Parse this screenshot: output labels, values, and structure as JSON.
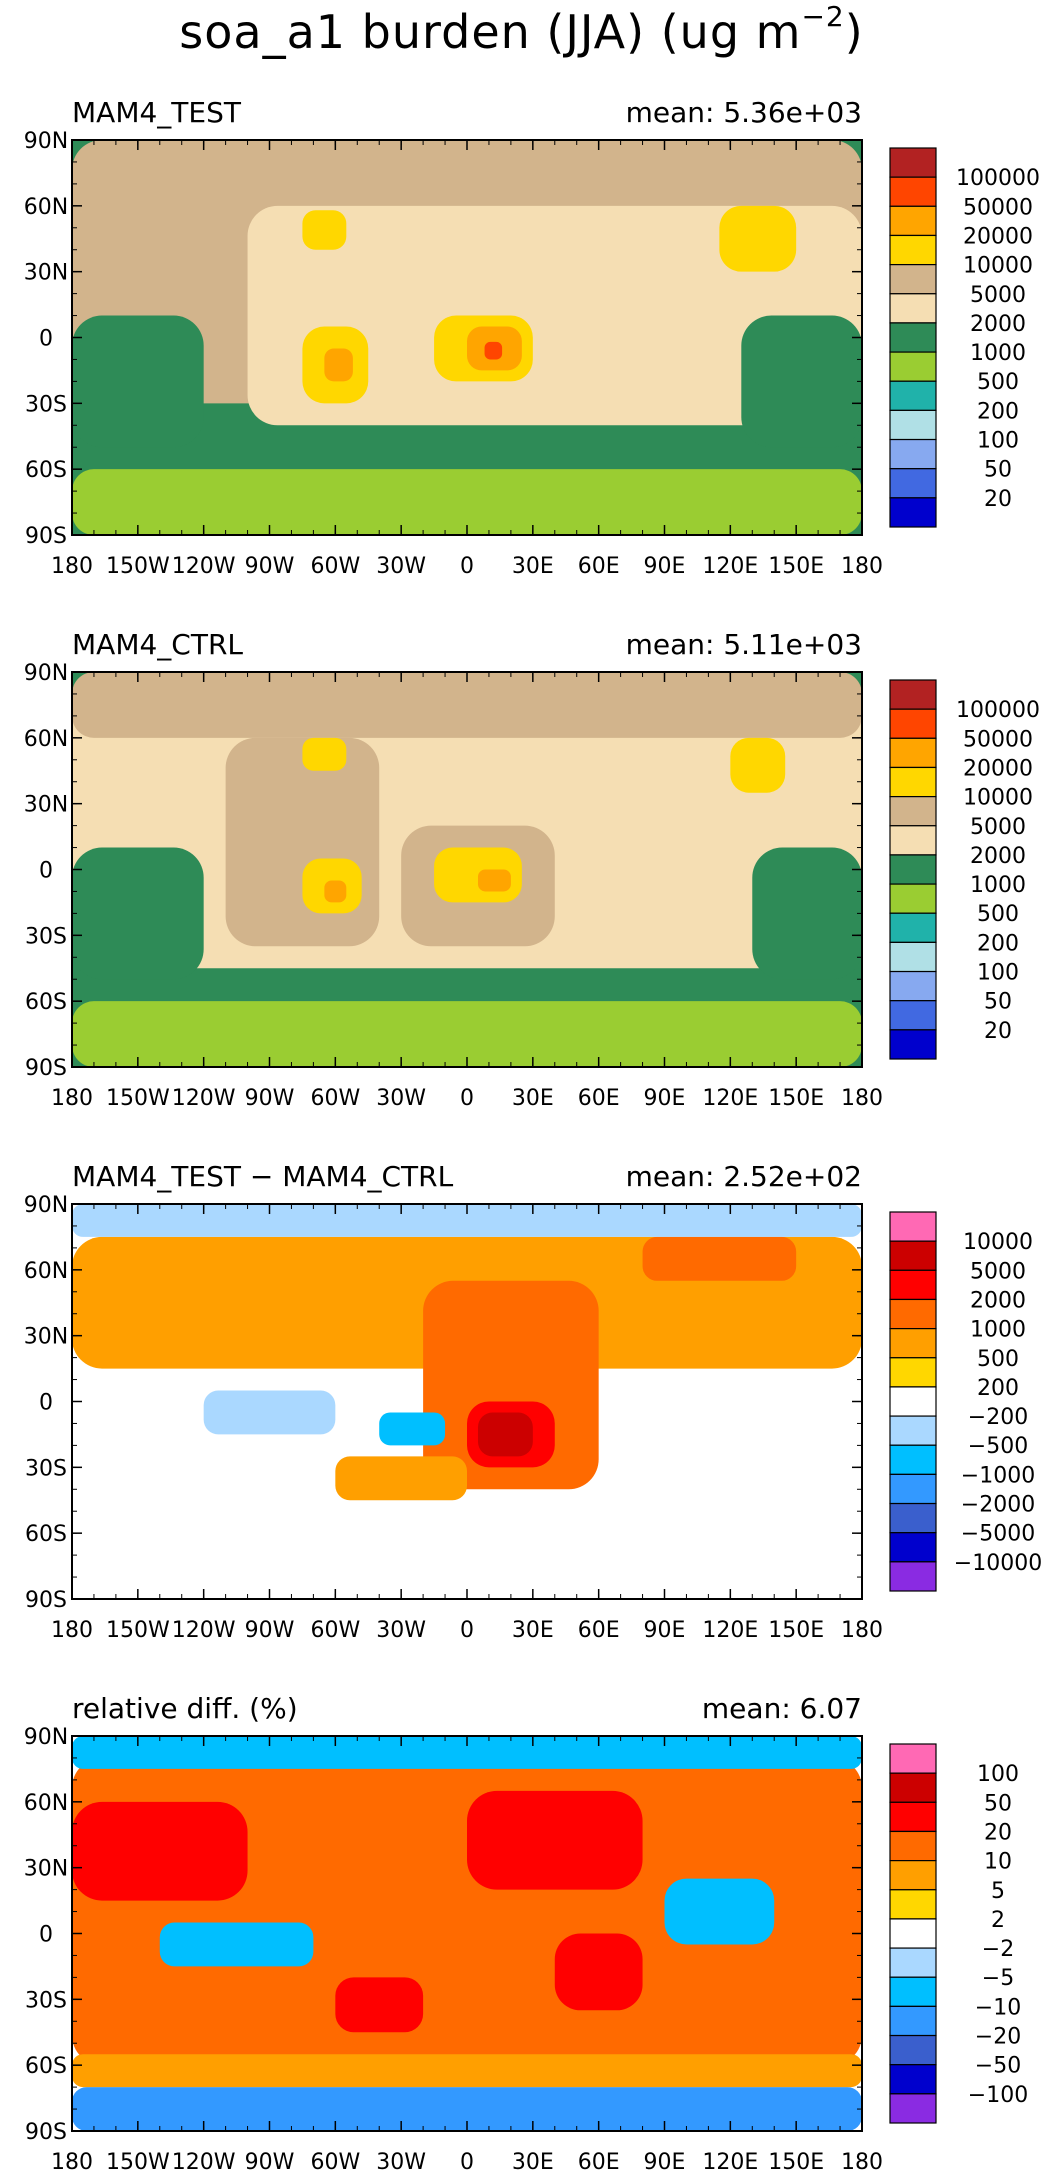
{
  "figure": {
    "title_main": "soa_a1 burden (JJA) (ug m",
    "title_sup": "−2",
    "title_close": ")"
  },
  "chart_data": [
    {
      "type": "heatmap",
      "title": "MAM4_TEST",
      "stat": "mean: 5.36e+03",
      "x_ticks": [
        "180",
        "150W",
        "120W",
        "90W",
        "60W",
        "30W",
        "0",
        "30E",
        "60E",
        "90E",
        "120E",
        "150E",
        "180"
      ],
      "y_ticks": [
        "90N",
        "60N",
        "30N",
        "0",
        "30S",
        "60S",
        "90S"
      ],
      "xlim": [
        -180,
        180
      ],
      "ylim": [
        -90,
        90
      ],
      "colorbar": {
        "labels": [
          "100000",
          "50000",
          "20000",
          "10000",
          "5000",
          "2000",
          "1000",
          "500",
          "200",
          "100",
          "50",
          "20"
        ],
        "colors": [
          "#b22222",
          "#ff4500",
          "#ffa500",
          "#ffd700",
          "#d2b48c",
          "#f5deb3",
          "#2e8b57",
          "#9acd32",
          "#20b2aa",
          "#b0e0e6",
          "#87a9f0",
          "#4169e1",
          "#0000cd"
        ]
      },
      "regions": [
        {
          "level": 5000,
          "lon": [
            -180,
            180
          ],
          "lat": [
            -30,
            90
          ]
        },
        {
          "level": 2000,
          "lon": [
            -100,
            180
          ],
          "lat": [
            -40,
            60
          ]
        },
        {
          "level": 10000,
          "lon": [
            -75,
            -55
          ],
          "lat": [
            40,
            58
          ]
        },
        {
          "level": 10000,
          "lon": [
            -75,
            -45
          ],
          "lat": [
            -30,
            5
          ]
        },
        {
          "level": 20000,
          "lon": [
            -65,
            -52
          ],
          "lat": [
            -20,
            -5
          ]
        },
        {
          "level": 10000,
          "lon": [
            -15,
            30
          ],
          "lat": [
            -20,
            10
          ]
        },
        {
          "level": 20000,
          "lon": [
            0,
            25
          ],
          "lat": [
            -15,
            5
          ]
        },
        {
          "level": 50000,
          "lon": [
            8,
            16
          ],
          "lat": [
            -10,
            -2
          ]
        },
        {
          "level": 10000,
          "lon": [
            115,
            150
          ],
          "lat": [
            30,
            60
          ]
        },
        {
          "level": 1000,
          "lon": [
            -180,
            -120
          ],
          "lat": [
            -50,
            10
          ]
        },
        {
          "level": 1000,
          "lon": [
            125,
            180
          ],
          "lat": [
            -50,
            10
          ]
        },
        {
          "level": 500,
          "lon": [
            -180,
            180
          ],
          "lat": [
            -90,
            -60
          ]
        }
      ]
    },
    {
      "type": "heatmap",
      "title": "MAM4_CTRL",
      "stat": "mean: 5.11e+03",
      "x_ticks": [
        "180",
        "150W",
        "120W",
        "90W",
        "60W",
        "30W",
        "0",
        "30E",
        "60E",
        "90E",
        "120E",
        "150E",
        "180"
      ],
      "y_ticks": [
        "90N",
        "60N",
        "30N",
        "0",
        "30S",
        "60S",
        "90S"
      ],
      "xlim": [
        -180,
        180
      ],
      "ylim": [
        -90,
        90
      ],
      "colorbar": {
        "labels": [
          "100000",
          "50000",
          "20000",
          "10000",
          "5000",
          "2000",
          "1000",
          "500",
          "200",
          "100",
          "50",
          "20"
        ],
        "colors": [
          "#b22222",
          "#ff4500",
          "#ffa500",
          "#ffd700",
          "#d2b48c",
          "#f5deb3",
          "#2e8b57",
          "#9acd32",
          "#20b2aa",
          "#b0e0e6",
          "#87a9f0",
          "#4169e1",
          "#0000cd"
        ]
      },
      "regions": [
        {
          "level": 2000,
          "lon": [
            -180,
            180
          ],
          "lat": [
            -45,
            90
          ]
        },
        {
          "level": 5000,
          "lon": [
            -180,
            180
          ],
          "lat": [
            60,
            90
          ]
        },
        {
          "level": 5000,
          "lon": [
            -110,
            -40
          ],
          "lat": [
            -35,
            60
          ]
        },
        {
          "level": 5000,
          "lon": [
            -30,
            40
          ],
          "lat": [
            -35,
            20
          ]
        },
        {
          "level": 10000,
          "lon": [
            -75,
            -55
          ],
          "lat": [
            45,
            60
          ]
        },
        {
          "level": 10000,
          "lon": [
            -75,
            -48
          ],
          "lat": [
            -20,
            5
          ]
        },
        {
          "level": 20000,
          "lon": [
            -65,
            -55
          ],
          "lat": [
            -15,
            -5
          ]
        },
        {
          "level": 10000,
          "lon": [
            -15,
            25
          ],
          "lat": [
            -15,
            10
          ]
        },
        {
          "level": 20000,
          "lon": [
            5,
            20
          ],
          "lat": [
            -10,
            0
          ]
        },
        {
          "level": 10000,
          "lon": [
            120,
            145
          ],
          "lat": [
            35,
            60
          ]
        },
        {
          "level": 1000,
          "lon": [
            -180,
            -120
          ],
          "lat": [
            -50,
            10
          ]
        },
        {
          "level": 1000,
          "lon": [
            130,
            180
          ],
          "lat": [
            -50,
            10
          ]
        },
        {
          "level": 500,
          "lon": [
            -180,
            180
          ],
          "lat": [
            -90,
            -60
          ]
        }
      ]
    },
    {
      "type": "heatmap",
      "title": "MAM4_TEST − MAM4_CTRL",
      "stat": "mean: 2.52e+02",
      "x_ticks": [
        "180",
        "150W",
        "120W",
        "90W",
        "60W",
        "30W",
        "0",
        "30E",
        "60E",
        "90E",
        "120E",
        "150E",
        "180"
      ],
      "y_ticks": [
        "90N",
        "60N",
        "30N",
        "0",
        "30S",
        "60S",
        "90S"
      ],
      "xlim": [
        -180,
        180
      ],
      "ylim": [
        -90,
        90
      ],
      "colorbar": {
        "labels": [
          "10000",
          "5000",
          "2000",
          "1000",
          "500",
          "200",
          "−200",
          "−500",
          "−1000",
          "−2000",
          "−5000",
          "−10000"
        ],
        "colors": [
          "#ff69b4",
          "#cc0000",
          "#ff0000",
          "#ff6a00",
          "#ff9f00",
          "#ffd700",
          "#ffffff",
          "#aad8ff",
          "#00bfff",
          "#3399ff",
          "#3a5fcd",
          "#0000cd",
          "#8a2be2"
        ]
      },
      "regions": [
        {
          "level": 500,
          "lon": [
            -180,
            180
          ],
          "lat": [
            15,
            75
          ]
        },
        {
          "level": 1000,
          "lon": [
            -20,
            60
          ],
          "lat": [
            -40,
            55
          ]
        },
        {
          "level": 2000,
          "lon": [
            0,
            40
          ],
          "lat": [
            -30,
            0
          ]
        },
        {
          "level": 5000,
          "lon": [
            5,
            30
          ],
          "lat": [
            -25,
            -5
          ]
        },
        {
          "level": 1000,
          "lon": [
            80,
            150
          ],
          "lat": [
            55,
            75
          ]
        },
        {
          "level": -500,
          "lon": [
            -120,
            -60
          ],
          "lat": [
            -15,
            5
          ]
        },
        {
          "level": -1000,
          "lon": [
            -40,
            -10
          ],
          "lat": [
            -20,
            -5
          ]
        },
        {
          "level": -500,
          "lon": [
            -180,
            180
          ],
          "lat": [
            75,
            90
          ]
        },
        {
          "level": -200,
          "lon": [
            -180,
            180
          ],
          "lat": [
            -90,
            -60
          ]
        },
        {
          "level": 500,
          "lon": [
            -60,
            0
          ],
          "lat": [
            -45,
            -25
          ]
        }
      ]
    },
    {
      "type": "heatmap",
      "title": "relative diff. (%)",
      "stat": "mean:  6.07",
      "x_ticks": [
        "180",
        "150W",
        "120W",
        "90W",
        "60W",
        "30W",
        "0",
        "30E",
        "60E",
        "90E",
        "120E",
        "150E",
        "180"
      ],
      "y_ticks": [
        "90N",
        "60N",
        "30N",
        "0",
        "30S",
        "60S",
        "90S"
      ],
      "xlim": [
        -180,
        180
      ],
      "ylim": [
        -90,
        90
      ],
      "colorbar": {
        "labels": [
          "100",
          "50",
          "20",
          "10",
          "5",
          "2",
          "−2",
          "−5",
          "−10",
          "−20",
          "−50",
          "−100"
        ],
        "colors": [
          "#ff69b4",
          "#cc0000",
          "#ff0000",
          "#ff6a00",
          "#ff9f00",
          "#ffd700",
          "#ffffff",
          "#aad8ff",
          "#00bfff",
          "#3399ff",
          "#3a5fcd",
          "#0000cd",
          "#8a2be2"
        ]
      },
      "regions": [
        {
          "level": 10,
          "lon": [
            -180,
            180
          ],
          "lat": [
            -60,
            80
          ]
        },
        {
          "level": 20,
          "lon": [
            -180,
            -100
          ],
          "lat": [
            15,
            60
          ]
        },
        {
          "level": 20,
          "lon": [
            0,
            80
          ],
          "lat": [
            20,
            65
          ]
        },
        {
          "level": 20,
          "lon": [
            40,
            80
          ],
          "lat": [
            -35,
            0
          ]
        },
        {
          "level": 20,
          "lon": [
            -60,
            -20
          ],
          "lat": [
            -45,
            -20
          ]
        },
        {
          "level": -10,
          "lon": [
            -140,
            -70
          ],
          "lat": [
            -15,
            5
          ]
        },
        {
          "level": -10,
          "lon": [
            90,
            140
          ],
          "lat": [
            -5,
            25
          ]
        },
        {
          "level": -10,
          "lon": [
            -180,
            180
          ],
          "lat": [
            75,
            90
          ]
        },
        {
          "level": -20,
          "lon": [
            -180,
            180
          ],
          "lat": [
            -90,
            -70
          ]
        },
        {
          "level": 5,
          "lon": [
            -180,
            180
          ],
          "lat": [
            -70,
            -55
          ]
        }
      ]
    }
  ]
}
